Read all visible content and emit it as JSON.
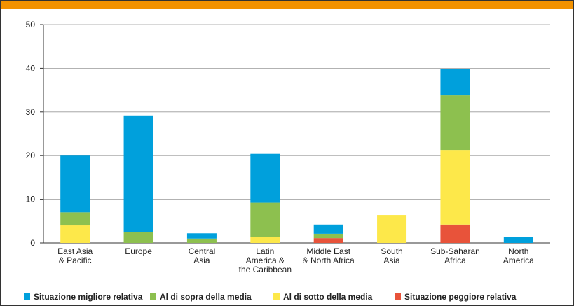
{
  "chart_data": {
    "type": "stacked_bar",
    "categories": [
      "East Asia\n& Pacific",
      "Europe",
      "Central\nAsia",
      "Latin\nAmerica &\nthe Caribbean",
      "Middle East\n& North Africa",
      "South\nAsia",
      "Sub-Saharan\nAfrica",
      "North\nAmerica"
    ],
    "series": [
      {
        "name": "Situazione migliore relativa",
        "color": "#00a0dc",
        "values": [
          13,
          26.7,
          1.2,
          11.2,
          2.1,
          0,
          6.1,
          1.4
        ]
      },
      {
        "name": "Al di sopra della media",
        "color": "#8dc04f",
        "values": [
          3,
          2.5,
          1,
          7.9,
          1,
          0,
          12.5,
          0
        ]
      },
      {
        "name": "Al di sotto della media",
        "color": "#fde84a",
        "values": [
          4,
          0,
          0,
          1.3,
          0,
          6.4,
          17.1,
          0
        ]
      },
      {
        "name": "Situazione peggiore relativa",
        "color": "#e8533a",
        "values": [
          0,
          0,
          0,
          0,
          1.1,
          0,
          4.2,
          0
        ]
      }
    ],
    "ylim": [
      0,
      50
    ],
    "yticks": [
      0,
      10,
      20,
      30,
      40,
      50
    ],
    "grid": true,
    "legend": "bottom"
  }
}
